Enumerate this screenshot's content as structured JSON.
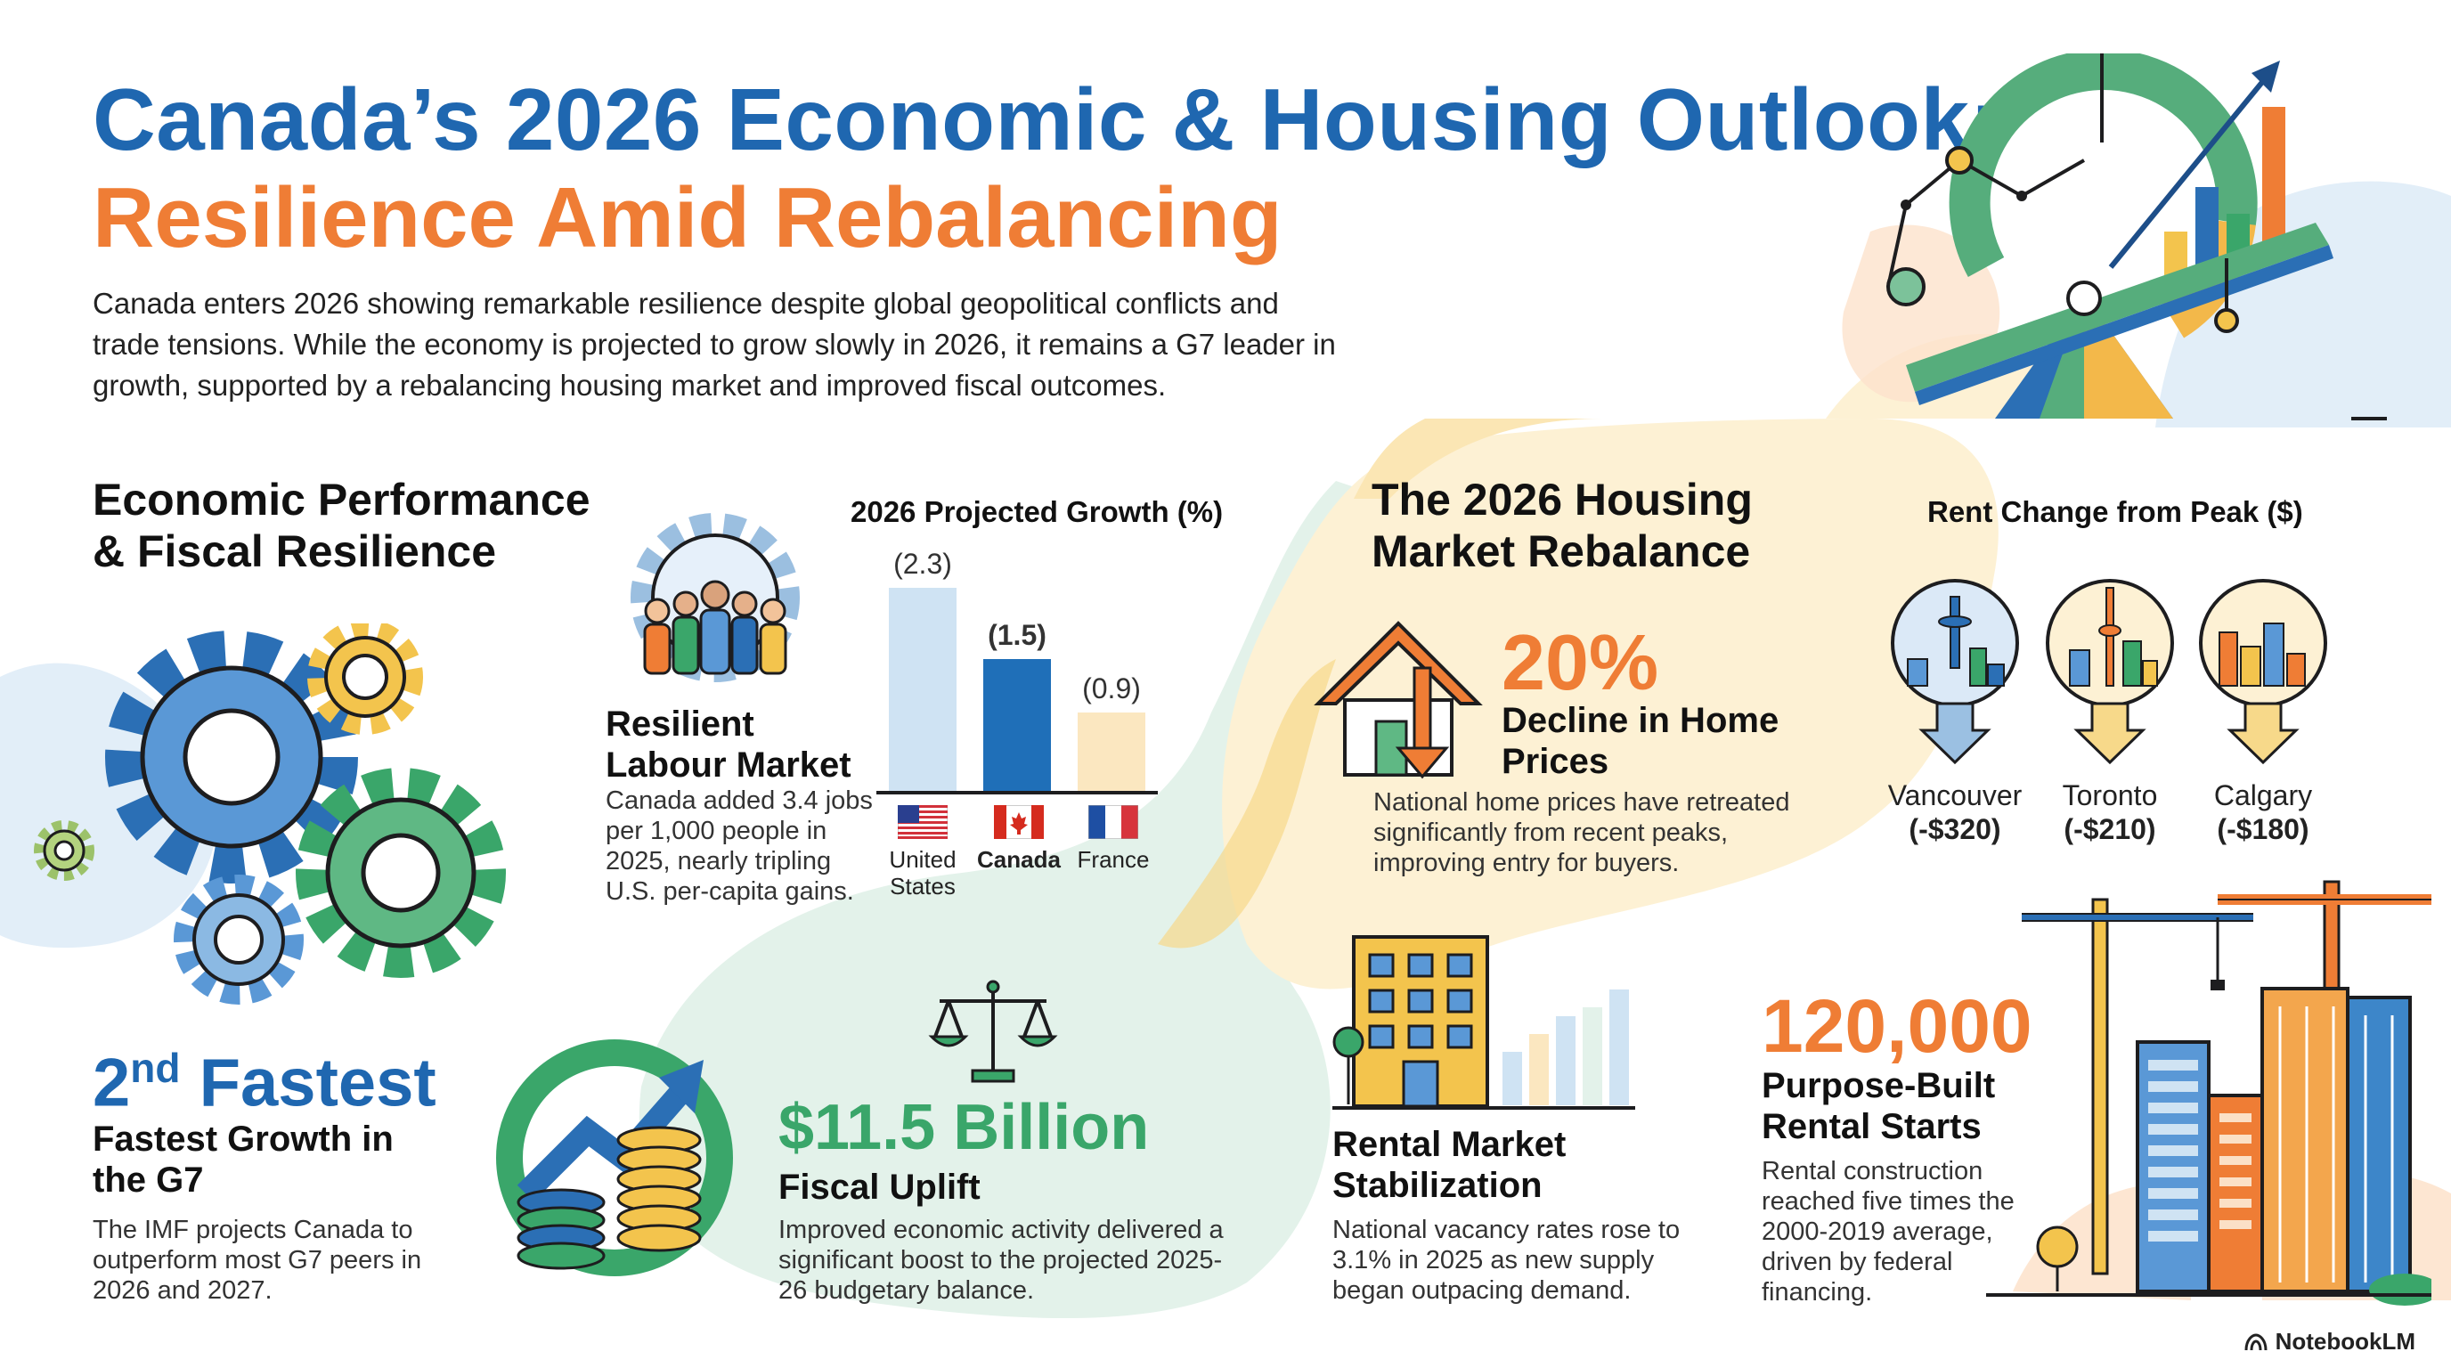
{
  "header": {
    "title_line1": "Canada’s 2026 Economic & Housing Outlook:",
    "title_line2": "Resilience Amid Rebalancing",
    "intro": "Canada enters 2026 showing remarkable resilience despite global geopolitical conflicts and trade tensions. While the economy is projected to grow slowly in 2026, it remains a G7 leader in growth, supported by a rebalancing housing market and improved fiscal outcomes."
  },
  "economic": {
    "heading": "Economic Performance & Fiscal Resilience",
    "labour": {
      "title": "Resilient Labour Market",
      "text": "Canada added 3.4 jobs per 1,000 people in 2025, nearly tripling U.S. per-capita gains."
    },
    "g7": {
      "rank_number": "2",
      "rank_suffix": "nd",
      "rank_word": "Fastest",
      "title": "Fastest Growth in the G7",
      "text": "The IMF projects Canada to outperform most G7 peers in 2026 and 2027."
    },
    "fiscal": {
      "stat": "$11.5 Billion",
      "title": "Fiscal Uplift",
      "text": "Improved economic activity delivered a significant boost to the projected 2025-26 budgetary balance."
    }
  },
  "chart_data": {
    "type": "bar",
    "title": "2026 Projected Growth (%)",
    "categories": [
      "United States",
      "Canada",
      "France"
    ],
    "value_labels": [
      "(2.3)",
      "(1.5)",
      "(0.9)"
    ],
    "values": [
      2.3,
      1.5,
      0.9
    ],
    "ylim": [
      0,
      2.3
    ],
    "highlight": "Canada",
    "colors": [
      "#cfe3f3",
      "#1f6fb8",
      "#fbe7c0"
    ]
  },
  "housing": {
    "heading": "The 2026 Housing Market Rebalance",
    "decline": {
      "stat": "20%",
      "title": "Decline in Home Prices",
      "text": "National home prices have retreated significantly from recent peaks, improving entry for buyers."
    },
    "rent_chart": {
      "title": "Rent Change from Peak ($)",
      "cities": [
        {
          "name": "Vancouver",
          "value_label": "(-$320)",
          "value": -320
        },
        {
          "name": "Toronto",
          "value_label": "(-$210)",
          "value": -210
        },
        {
          "name": "Calgary",
          "value_label": "(-$180)",
          "value": -180
        }
      ]
    },
    "rental": {
      "title": "Rental Market Stabilization",
      "text": "National vacancy rates rose to 3.1% in 2025 as new supply began outpacing demand."
    },
    "starts": {
      "stat": "120,000",
      "title": "Purpose-Built Rental Starts",
      "text": "Rental construction reached five times the 2000-2019 average, driven by federal financing."
    }
  },
  "branding": {
    "name": "NotebookLM",
    "icon": "notebooklm-logo-icon"
  },
  "colors": {
    "blue": "#1f67b0",
    "orange": "#ef7d35",
    "green": "#3aa66a",
    "pale_yellow": "#fdf1d4",
    "pale_green": "#e3f2ea"
  }
}
